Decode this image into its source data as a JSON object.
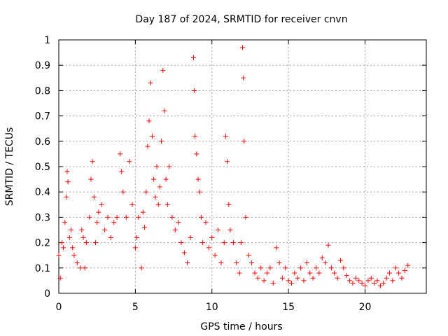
{
  "chart_data": {
    "type": "scatter",
    "title": "Day 187 of 2024, SRMTID for receiver cnvn",
    "xlabel": "GPS time / hours",
    "ylabel": "SRMTID / TECUs",
    "xlim": [
      0,
      24
    ],
    "ylim": [
      0,
      1
    ],
    "xticks": [
      0,
      5,
      10,
      15,
      20
    ],
    "xtick_labels": [
      "0",
      "5",
      "10",
      "15",
      "20"
    ],
    "yticks": [
      0,
      0.1,
      0.2,
      0.3,
      0.4,
      0.5,
      0.6,
      0.7,
      0.8,
      0.9,
      1
    ],
    "ytick_labels": [
      "0",
      "0.1",
      "0.2",
      "0.3",
      "0.4",
      "0.5",
      "0.6",
      "0.7",
      "0.8",
      "0.9",
      "1"
    ],
    "grid": true,
    "marker": "+",
    "color": "#ff0000",
    "series": [
      {
        "name": "SRMTID",
        "x": [
          0.0,
          0.1,
          0.2,
          0.3,
          0.4,
          0.5,
          0.55,
          0.6,
          0.7,
          0.8,
          0.9,
          1.0,
          1.2,
          1.4,
          1.5,
          1.6,
          1.7,
          1.8,
          2.0,
          2.1,
          2.2,
          2.3,
          2.4,
          2.5,
          2.6,
          2.8,
          3.0,
          3.2,
          3.4,
          3.6,
          3.8,
          4.0,
          4.1,
          4.2,
          4.4,
          4.6,
          4.8,
          5.0,
          5.1,
          5.2,
          5.4,
          5.5,
          5.6,
          5.7,
          5.8,
          5.9,
          6.0,
          6.1,
          6.2,
          6.3,
          6.4,
          6.5,
          6.6,
          6.7,
          6.8,
          6.9,
          7.0,
          7.1,
          7.2,
          7.4,
          7.6,
          7.8,
          8.0,
          8.2,
          8.4,
          8.6,
          8.8,
          8.85,
          8.9,
          9.0,
          9.1,
          9.2,
          9.3,
          9.4,
          9.6,
          9.8,
          10.0,
          10.2,
          10.4,
          10.6,
          10.8,
          10.9,
          11.0,
          11.1,
          11.2,
          11.4,
          11.6,
          11.8,
          11.9,
          12.0,
          12.05,
          12.1,
          12.2,
          12.4,
          12.6,
          12.8,
          13.0,
          13.2,
          13.4,
          13.6,
          13.8,
          14.0,
          14.2,
          14.4,
          14.6,
          14.8,
          15.0,
          15.2,
          15.4,
          15.6,
          15.8,
          16.0,
          16.2,
          16.4,
          16.6,
          16.8,
          17.0,
          17.2,
          17.4,
          17.6,
          17.8,
          18.0,
          18.2,
          18.4,
          18.6,
          18.8,
          19.0,
          19.2,
          19.4,
          19.6,
          19.8,
          20.0,
          20.2,
          20.4,
          20.6,
          20.8,
          21.0,
          21.2,
          21.4,
          21.6,
          21.8,
          22.0,
          22.2,
          22.4,
          22.6,
          22.8
        ],
        "y": [
          0.15,
          0.06,
          0.2,
          0.18,
          0.28,
          0.38,
          0.48,
          0.44,
          0.22,
          0.25,
          0.18,
          0.15,
          0.12,
          0.1,
          0.25,
          0.22,
          0.1,
          0.2,
          0.3,
          0.45,
          0.52,
          0.38,
          0.2,
          0.28,
          0.32,
          0.35,
          0.25,
          0.3,
          0.22,
          0.28,
          0.3,
          0.55,
          0.48,
          0.4,
          0.3,
          0.52,
          0.35,
          0.18,
          0.22,
          0.3,
          0.1,
          0.32,
          0.26,
          0.4,
          0.58,
          0.68,
          0.83,
          0.62,
          0.45,
          0.38,
          0.5,
          0.35,
          0.42,
          0.6,
          0.88,
          0.72,
          0.45,
          0.35,
          0.5,
          0.3,
          0.25,
          0.28,
          0.2,
          0.16,
          0.12,
          0.22,
          0.93,
          0.8,
          0.62,
          0.55,
          0.45,
          0.4,
          0.3,
          0.2,
          0.28,
          0.18,
          0.22,
          0.15,
          0.25,
          0.12,
          0.2,
          0.62,
          0.52,
          0.35,
          0.25,
          0.2,
          0.12,
          0.08,
          0.2,
          0.97,
          0.85,
          0.6,
          0.3,
          0.15,
          0.12,
          0.08,
          0.06,
          0.1,
          0.05,
          0.08,
          0.1,
          0.04,
          0.18,
          0.12,
          0.06,
          0.1,
          0.05,
          0.04,
          0.08,
          0.06,
          0.1,
          0.05,
          0.12,
          0.08,
          0.06,
          0.1,
          0.08,
          0.14,
          0.12,
          0.19,
          0.1,
          0.08,
          0.06,
          0.13,
          0.1,
          0.07,
          0.05,
          0.04,
          0.06,
          0.05,
          0.04,
          0.03,
          0.05,
          0.06,
          0.04,
          0.05,
          0.03,
          0.04,
          0.06,
          0.08,
          0.05,
          0.1,
          0.08,
          0.06,
          0.09,
          0.11
        ]
      }
    ]
  }
}
